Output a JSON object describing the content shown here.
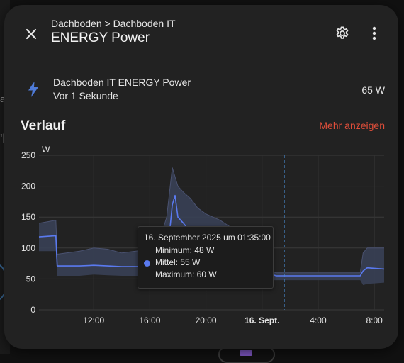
{
  "background": {
    "side_fragments": [
      "a",
      "'l"
    ]
  },
  "header": {
    "breadcrumb": "Dachboden > Dachboden IT",
    "title": "ENERGY Power",
    "close_icon": "close-icon",
    "settings_icon": "gear-icon",
    "menu_icon": "more-vertical-icon"
  },
  "entity": {
    "icon": "lightning-bolt-icon",
    "name": "Dachboden IT ENERGY Power",
    "last_changed": "Vor 1 Sekunde",
    "state": "65 W"
  },
  "history": {
    "title": "Verlauf",
    "more_link": "Mehr anzeigen"
  },
  "tooltip": {
    "date": "16. September 2025 um 01:35:00",
    "minimum": "Minimum: 48 W",
    "mean": "Mittel: 55 W",
    "maximum": "Maximum: 60 W"
  },
  "colors": {
    "line": "#5a7af0",
    "band": "#3a4258",
    "accent_link": "#e04e3a",
    "crosshair": "#4a90d9",
    "dialog": "#222222"
  },
  "chart_data": {
    "type": "line",
    "ylabel": "W",
    "ylim": [
      0,
      250
    ],
    "y_ticks": [
      "0",
      "50",
      "100",
      "150",
      "200",
      "250"
    ],
    "x_ticks": [
      {
        "label": "12:00",
        "x": 12,
        "bold": false
      },
      {
        "label": "16:00",
        "x": 16,
        "bold": false
      },
      {
        "label": "20:00",
        "x": 20,
        "bold": false
      },
      {
        "label": "16. Sept.",
        "x": 24,
        "bold": true
      },
      {
        "label": "4:00",
        "x": 28,
        "bold": false
      },
      {
        "label": "8:00",
        "x": 32,
        "bold": false
      }
    ],
    "xlim": [
      8.1,
      32.7
    ],
    "crosshair_x": 25.58,
    "series": [
      {
        "mean": [
          [
            8.1,
            118
          ],
          [
            9.3,
            120
          ],
          [
            9.4,
            71
          ],
          [
            11,
            71
          ],
          [
            12,
            72
          ],
          [
            13,
            71
          ],
          [
            14,
            70
          ],
          [
            15,
            70
          ],
          [
            16,
            71
          ],
          [
            16.5,
            70
          ],
          [
            17,
            75
          ],
          [
            17.3,
            100
          ],
          [
            17.6,
            170
          ],
          [
            17.8,
            185
          ],
          [
            18,
            150
          ],
          [
            18.4,
            140
          ],
          [
            18.9,
            125
          ],
          [
            19.4,
            108
          ],
          [
            20,
            100
          ],
          [
            21,
            92
          ],
          [
            22,
            82
          ],
          [
            23,
            78
          ],
          [
            24,
            74
          ],
          [
            24.6,
            70
          ],
          [
            24.75,
            57
          ],
          [
            25,
            55
          ],
          [
            27,
            55
          ],
          [
            30,
            55
          ],
          [
            31,
            55
          ],
          [
            31.2,
            63
          ],
          [
            31.5,
            68
          ],
          [
            32.7,
            66
          ]
        ],
        "min": [
          [
            8.1,
            95
          ],
          [
            9.3,
            95
          ],
          [
            9.4,
            55
          ],
          [
            11,
            55
          ],
          [
            12,
            57
          ],
          [
            13,
            56
          ],
          [
            14,
            55
          ],
          [
            15,
            55
          ],
          [
            16,
            55
          ],
          [
            17,
            58
          ],
          [
            17.6,
            65
          ],
          [
            18,
            75
          ],
          [
            18.9,
            80
          ],
          [
            20,
            80
          ],
          [
            21,
            75
          ],
          [
            22,
            68
          ],
          [
            23,
            65
          ],
          [
            24,
            60
          ],
          [
            24.6,
            55
          ],
          [
            24.75,
            48
          ],
          [
            25,
            48
          ],
          [
            27,
            48
          ],
          [
            30,
            48
          ],
          [
            31,
            48
          ],
          [
            31.2,
            40
          ],
          [
            31.5,
            42
          ],
          [
            32.7,
            44
          ]
        ],
        "max": [
          [
            8.1,
            140
          ],
          [
            9.3,
            145
          ],
          [
            9.4,
            90
          ],
          [
            11,
            95
          ],
          [
            12,
            100
          ],
          [
            13,
            98
          ],
          [
            14,
            92
          ],
          [
            15,
            95
          ],
          [
            16,
            98
          ],
          [
            16.8,
            120
          ],
          [
            17.2,
            150
          ],
          [
            17.6,
            230
          ],
          [
            18,
            200
          ],
          [
            18.4,
            190
          ],
          [
            18.9,
            180
          ],
          [
            19.4,
            165
          ],
          [
            20,
            155
          ],
          [
            21,
            145
          ],
          [
            22,
            130
          ],
          [
            23,
            112
          ],
          [
            24,
            100
          ],
          [
            24.6,
            90
          ],
          [
            24.75,
            62
          ],
          [
            25,
            60
          ],
          [
            27,
            60
          ],
          [
            30,
            60
          ],
          [
            31,
            60
          ],
          [
            31.2,
            92
          ],
          [
            31.5,
            100
          ],
          [
            32.7,
            100
          ]
        ]
      }
    ],
    "tooltip_x": 25
  }
}
